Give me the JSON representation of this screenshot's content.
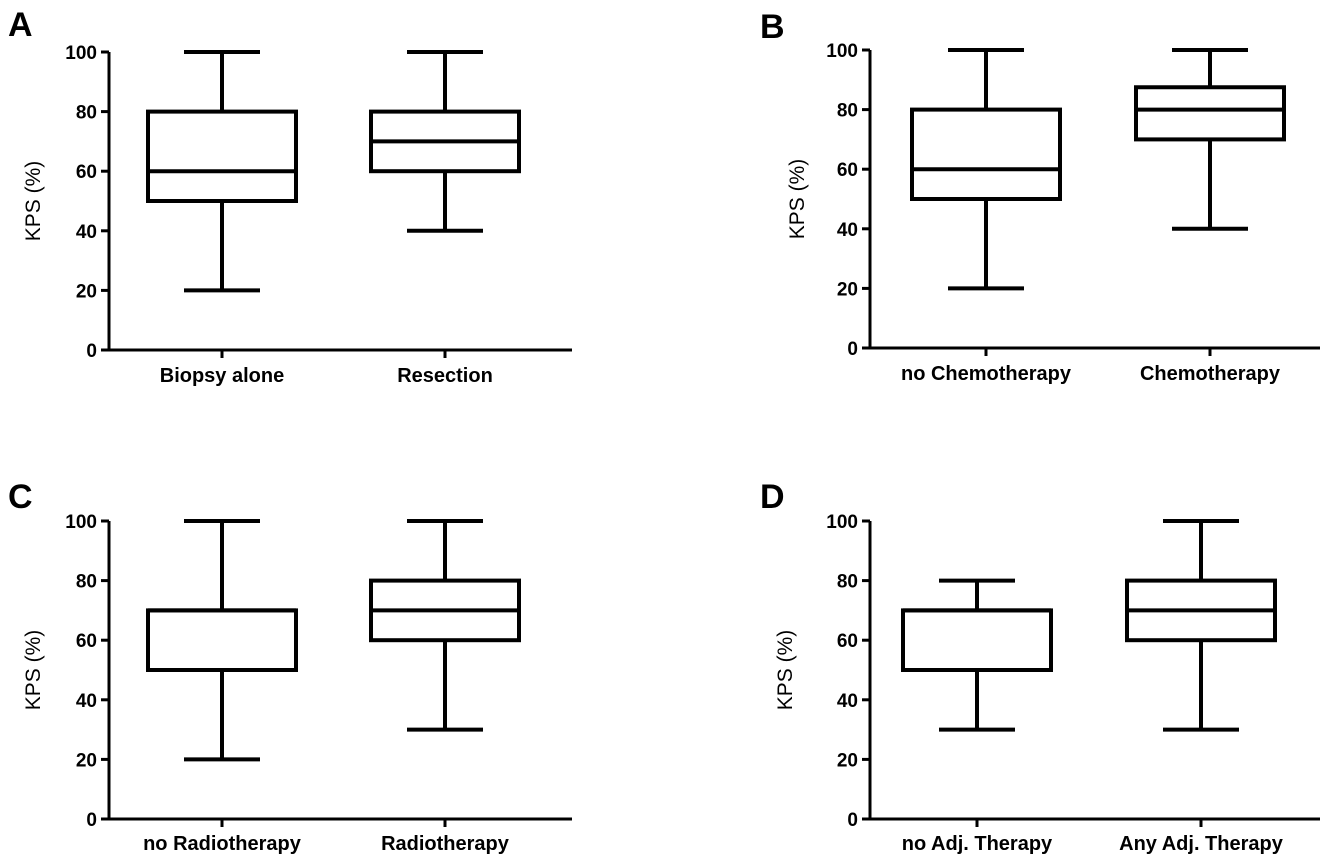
{
  "chart_data": [
    {
      "panel": "A",
      "type": "box",
      "ylabel": "KPS (%)",
      "ylim": [
        0,
        100
      ],
      "yticks": [
        0,
        20,
        40,
        60,
        80,
        100
      ],
      "categories": [
        "Biopsy alone",
        "Resection"
      ],
      "boxes": [
        {
          "min": 20,
          "q1": 50,
          "median": 60,
          "q3": 80,
          "max": 100
        },
        {
          "min": 40,
          "q1": 60,
          "median": 70,
          "q3": 80,
          "max": 100
        }
      ]
    },
    {
      "panel": "B",
      "type": "box",
      "ylabel": "KPS (%)",
      "ylim": [
        0,
        100
      ],
      "yticks": [
        0,
        20,
        40,
        60,
        80,
        100
      ],
      "categories": [
        "no Chemotherapy",
        "Chemotherapy"
      ],
      "boxes": [
        {
          "min": 20,
          "q1": 50,
          "median": 60,
          "q3": 80,
          "max": 100
        },
        {
          "min": 40,
          "q1": 70,
          "median": 80,
          "q3": 87.5,
          "max": 100
        }
      ]
    },
    {
      "panel": "C",
      "type": "box",
      "ylabel": "KPS (%)",
      "ylim": [
        0,
        100
      ],
      "yticks": [
        0,
        20,
        40,
        60,
        80,
        100
      ],
      "categories": [
        "no Radiotherapy",
        "Radiotherapy"
      ],
      "boxes": [
        {
          "min": 20,
          "q1": 50,
          "median": 70,
          "q3": 70,
          "max": 100
        },
        {
          "min": 30,
          "q1": 60,
          "median": 70,
          "q3": 80,
          "max": 100
        }
      ]
    },
    {
      "panel": "D",
      "type": "box",
      "ylabel": "KPS (%)",
      "ylim": [
        0,
        100
      ],
      "yticks": [
        0,
        20,
        40,
        60,
        80,
        100
      ],
      "categories": [
        "no Adj. Therapy",
        "Any Adj. Therapy"
      ],
      "boxes": [
        {
          "min": 30,
          "q1": 50,
          "median": 70,
          "q3": 70,
          "max": 80
        },
        {
          "min": 30,
          "q1": 60,
          "median": 70,
          "q3": 80,
          "max": 100
        }
      ]
    }
  ]
}
